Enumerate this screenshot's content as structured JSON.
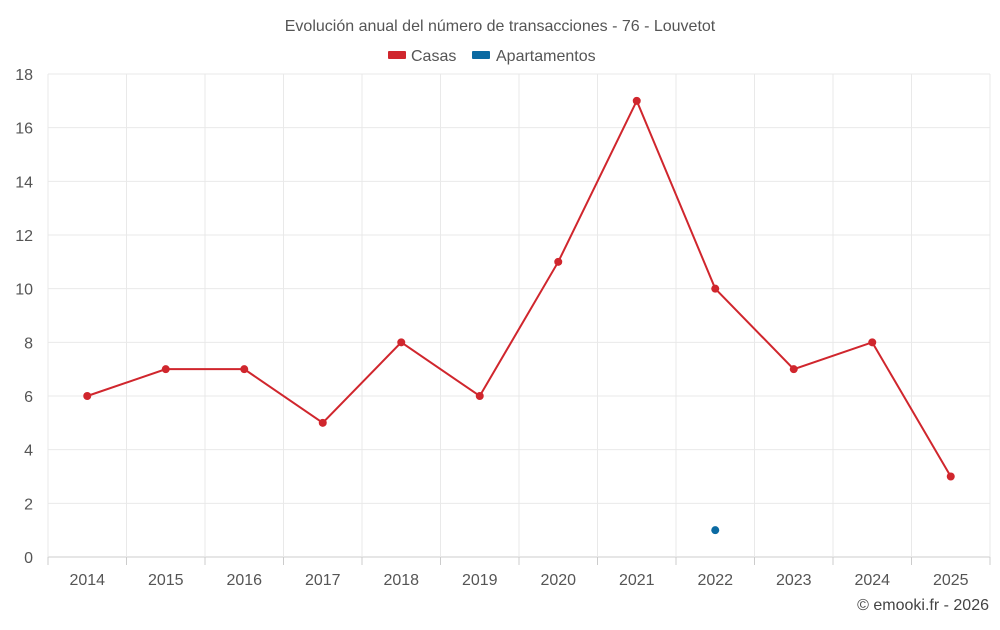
{
  "chart_data": {
    "type": "line",
    "title": "Evolución anual del número de transacciones - 76 - Louvetot",
    "categories": [
      "2014",
      "2015",
      "2016",
      "2017",
      "2018",
      "2019",
      "2020",
      "2021",
      "2022",
      "2023",
      "2024",
      "2025"
    ],
    "series": [
      {
        "name": "Casas",
        "color": "#d0262d",
        "values": [
          6,
          7,
          7,
          5,
          8,
          6,
          11,
          17,
          10,
          7,
          8,
          3
        ]
      },
      {
        "name": "Apartamentos",
        "color": "#0b6aa2",
        "values": [
          null,
          null,
          null,
          null,
          null,
          null,
          null,
          null,
          1,
          null,
          null,
          null
        ]
      }
    ],
    "ylim": [
      0,
      18
    ],
    "yticks": [
      0,
      2,
      4,
      6,
      8,
      10,
      12,
      14,
      16,
      18
    ],
    "xlabel": "",
    "ylabel": "",
    "grid": true,
    "legend_position": "top-center"
  },
  "credit": "© emooki.fr - 2026"
}
